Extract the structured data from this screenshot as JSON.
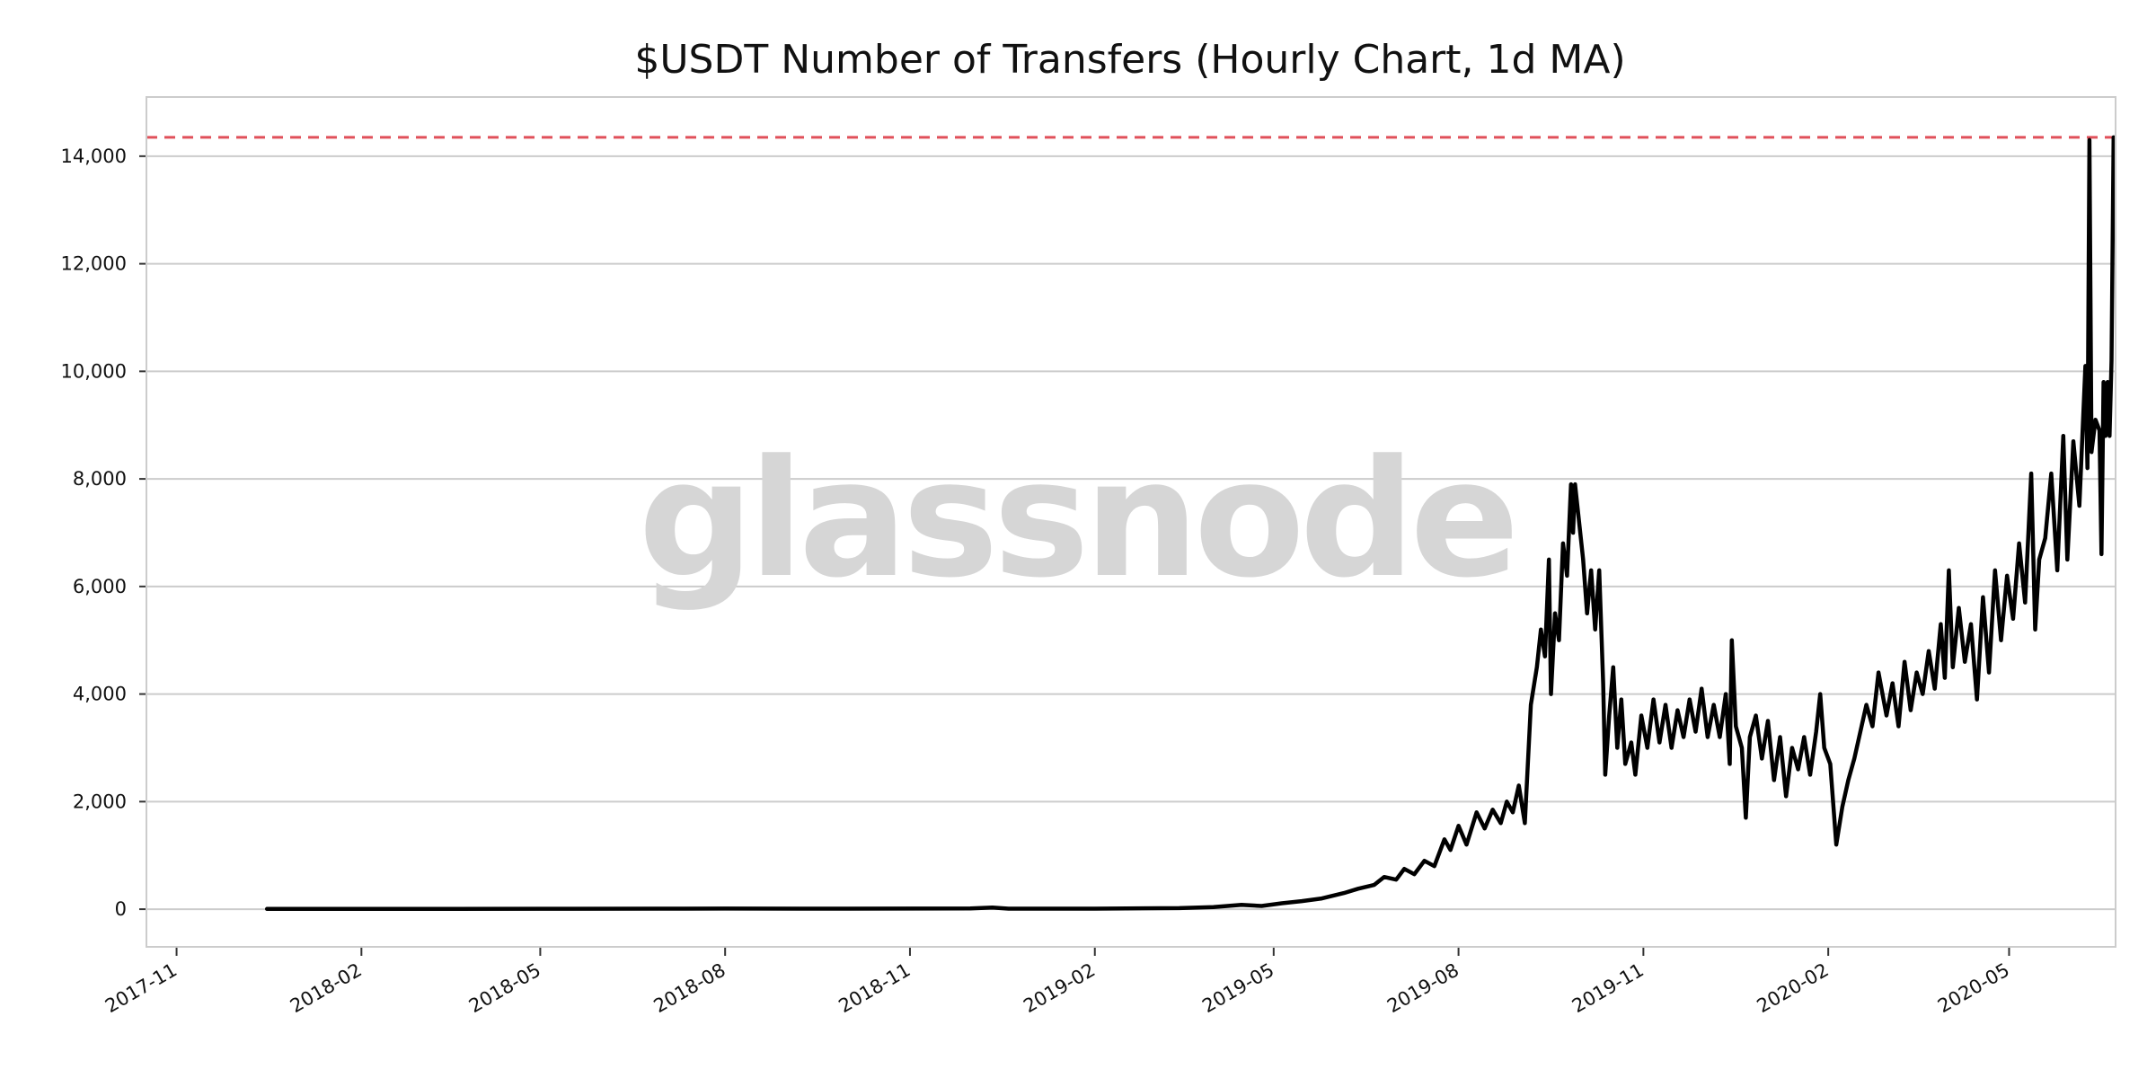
{
  "chart_data": {
    "type": "line",
    "title": "$USDT Number of Transfers (Hourly Chart, 1d MA)",
    "watermark": "glassnode",
    "xlabel": "",
    "ylabel": "",
    "xlim": [
      "2017-10-17",
      "2020-06-23"
    ],
    "ylim": [
      -700,
      15100
    ],
    "grid": "horizontal",
    "x_tick_labels": [
      "2017-11",
      "2018-02",
      "2018-05",
      "2018-08",
      "2018-11",
      "2019-02",
      "2019-05",
      "2019-08",
      "2019-11",
      "2020-02",
      "2020-05"
    ],
    "y_tick_values": [
      0,
      2000,
      4000,
      6000,
      8000,
      10000,
      12000,
      14000
    ],
    "y_tick_labels": [
      "0",
      "2,000",
      "4,000",
      "6,000",
      "8,000",
      "10,000",
      "12,000",
      "14,000"
    ],
    "colors": {
      "line": "#000000",
      "max_line": "#e0505a",
      "grid": "#cccccc",
      "frame": "#cccccc"
    },
    "reference_line": {
      "label": "",
      "value": 14350
    },
    "series": [
      {
        "name": "",
        "points": [
          [
            "2017-12-16",
            5
          ],
          [
            "2018-02-15",
            5
          ],
          [
            "2018-05-01",
            8
          ],
          [
            "2018-06-29",
            10
          ],
          [
            "2018-08-01",
            12
          ],
          [
            "2018-10-01",
            10
          ],
          [
            "2018-12-01",
            15
          ],
          [
            "2018-12-12",
            30
          ],
          [
            "2018-12-20",
            10
          ],
          [
            "2019-02-01",
            10
          ],
          [
            "2019-03-15",
            20
          ],
          [
            "2019-04-01",
            40
          ],
          [
            "2019-04-15",
            80
          ],
          [
            "2019-04-25",
            60
          ],
          [
            "2019-05-05",
            110
          ],
          [
            "2019-05-15",
            150
          ],
          [
            "2019-05-25",
            200
          ],
          [
            "2019-06-05",
            300
          ],
          [
            "2019-06-12",
            380
          ],
          [
            "2019-06-20",
            450
          ],
          [
            "2019-06-25",
            600
          ],
          [
            "2019-07-01",
            550
          ],
          [
            "2019-07-05",
            750
          ],
          [
            "2019-07-10",
            650
          ],
          [
            "2019-07-15",
            900
          ],
          [
            "2019-07-20",
            800
          ],
          [
            "2019-07-25",
            1300
          ],
          [
            "2019-07-28",
            1100
          ],
          [
            "2019-08-01",
            1550
          ],
          [
            "2019-08-05",
            1200
          ],
          [
            "2019-08-10",
            1800
          ],
          [
            "2019-08-14",
            1500
          ],
          [
            "2019-08-18",
            1850
          ],
          [
            "2019-08-22",
            1600
          ],
          [
            "2019-08-25",
            2000
          ],
          [
            "2019-08-28",
            1800
          ],
          [
            "2019-08-31",
            2300
          ],
          [
            "2019-09-03",
            1600
          ],
          [
            "2019-09-06",
            3800
          ],
          [
            "2019-09-09",
            4500
          ],
          [
            "2019-09-11",
            5200
          ],
          [
            "2019-09-13",
            4700
          ],
          [
            "2019-09-15",
            6500
          ],
          [
            "2019-09-16",
            4000
          ],
          [
            "2019-09-18",
            5500
          ],
          [
            "2019-09-20",
            5000
          ],
          [
            "2019-09-22",
            6800
          ],
          [
            "2019-09-24",
            6200
          ],
          [
            "2019-09-26",
            7900
          ],
          [
            "2019-09-27",
            7000
          ],
          [
            "2019-09-28",
            7900
          ],
          [
            "2019-09-30",
            7200
          ],
          [
            "2019-10-02",
            6500
          ],
          [
            "2019-10-04",
            5500
          ],
          [
            "2019-10-06",
            6300
          ],
          [
            "2019-10-08",
            5200
          ],
          [
            "2019-10-10",
            6300
          ],
          [
            "2019-10-12",
            4200
          ],
          [
            "2019-10-13",
            2500
          ],
          [
            "2019-10-15",
            3600
          ],
          [
            "2019-10-17",
            4500
          ],
          [
            "2019-10-19",
            3000
          ],
          [
            "2019-10-21",
            3900
          ],
          [
            "2019-10-23",
            2700
          ],
          [
            "2019-10-26",
            3100
          ],
          [
            "2019-10-28",
            2500
          ],
          [
            "2019-10-31",
            3600
          ],
          [
            "2019-11-03",
            3000
          ],
          [
            "2019-11-06",
            3900
          ],
          [
            "2019-11-09",
            3100
          ],
          [
            "2019-11-12",
            3800
          ],
          [
            "2019-11-15",
            3000
          ],
          [
            "2019-11-18",
            3700
          ],
          [
            "2019-11-21",
            3200
          ],
          [
            "2019-11-24",
            3900
          ],
          [
            "2019-11-27",
            3300
          ],
          [
            "2019-11-30",
            4100
          ],
          [
            "2019-12-03",
            3200
          ],
          [
            "2019-12-06",
            3800
          ],
          [
            "2019-12-09",
            3200
          ],
          [
            "2019-12-12",
            4000
          ],
          [
            "2019-12-14",
            2700
          ],
          [
            "2019-12-15",
            5000
          ],
          [
            "2019-12-17",
            3400
          ],
          [
            "2019-12-20",
            3000
          ],
          [
            "2019-12-22",
            1700
          ],
          [
            "2019-12-24",
            3200
          ],
          [
            "2019-12-27",
            3600
          ],
          [
            "2019-12-30",
            2800
          ],
          [
            "2020-01-02",
            3500
          ],
          [
            "2020-01-05",
            2400
          ],
          [
            "2020-01-08",
            3200
          ],
          [
            "2020-01-11",
            2100
          ],
          [
            "2020-01-14",
            3000
          ],
          [
            "2020-01-17",
            2600
          ],
          [
            "2020-01-20",
            3200
          ],
          [
            "2020-01-23",
            2500
          ],
          [
            "2020-01-26",
            3300
          ],
          [
            "2020-01-28",
            4000
          ],
          [
            "2020-01-30",
            3000
          ],
          [
            "2020-02-02",
            2700
          ],
          [
            "2020-02-05",
            1200
          ],
          [
            "2020-02-08",
            1900
          ],
          [
            "2020-02-11",
            2400
          ],
          [
            "2020-02-14",
            2800
          ],
          [
            "2020-02-17",
            3300
          ],
          [
            "2020-02-20",
            3800
          ],
          [
            "2020-02-23",
            3400
          ],
          [
            "2020-02-26",
            4400
          ],
          [
            "2020-03-01",
            3600
          ],
          [
            "2020-03-04",
            4200
          ],
          [
            "2020-03-07",
            3400
          ],
          [
            "2020-03-10",
            4600
          ],
          [
            "2020-03-13",
            3700
          ],
          [
            "2020-03-16",
            4400
          ],
          [
            "2020-03-19",
            4000
          ],
          [
            "2020-03-22",
            4800
          ],
          [
            "2020-03-25",
            4100
          ],
          [
            "2020-03-28",
            5300
          ],
          [
            "2020-03-30",
            4300
          ],
          [
            "2020-04-01",
            6300
          ],
          [
            "2020-04-03",
            4500
          ],
          [
            "2020-04-06",
            5600
          ],
          [
            "2020-04-09",
            4600
          ],
          [
            "2020-04-12",
            5300
          ],
          [
            "2020-04-15",
            3900
          ],
          [
            "2020-04-18",
            5800
          ],
          [
            "2020-04-21",
            4400
          ],
          [
            "2020-04-24",
            6300
          ],
          [
            "2020-04-27",
            5000
          ],
          [
            "2020-04-30",
            6200
          ],
          [
            "2020-05-03",
            5400
          ],
          [
            "2020-05-06",
            6800
          ],
          [
            "2020-05-09",
            5700
          ],
          [
            "2020-05-12",
            8100
          ],
          [
            "2020-05-14",
            5200
          ],
          [
            "2020-05-16",
            6500
          ],
          [
            "2020-05-19",
            6900
          ],
          [
            "2020-05-22",
            8100
          ],
          [
            "2020-05-25",
            6300
          ],
          [
            "2020-05-28",
            8800
          ],
          [
            "2020-05-30",
            6500
          ],
          [
            "2020-06-02",
            8700
          ],
          [
            "2020-06-05",
            7500
          ],
          [
            "2020-06-08",
            10100
          ],
          [
            "2020-06-09",
            8200
          ],
          [
            "2020-06-10",
            14300
          ],
          [
            "2020-06-11",
            8500
          ],
          [
            "2020-06-13",
            9100
          ],
          [
            "2020-06-15",
            8900
          ],
          [
            "2020-06-16",
            6600
          ],
          [
            "2020-06-17",
            9800
          ],
          [
            "2020-06-18",
            8800
          ],
          [
            "2020-06-19",
            9800
          ],
          [
            "2020-06-20",
            8800
          ],
          [
            "2020-06-21",
            10200
          ],
          [
            "2020-06-22",
            14350
          ]
        ]
      }
    ]
  }
}
